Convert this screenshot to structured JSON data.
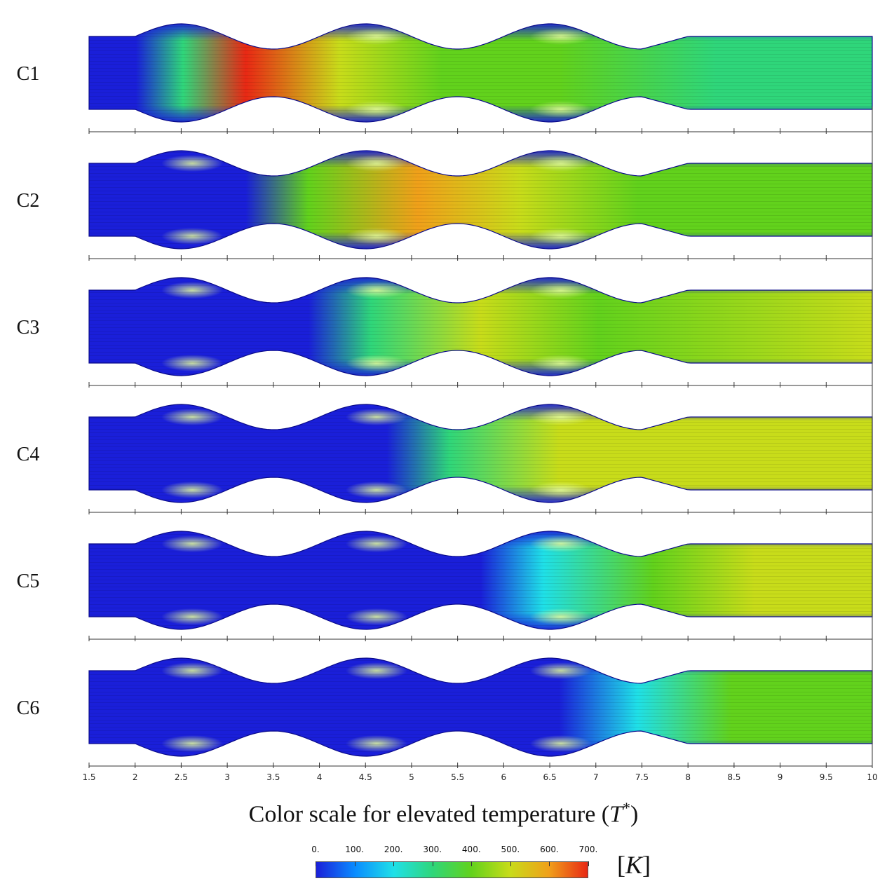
{
  "cases": [
    "C1",
    "C2",
    "C3",
    "C4",
    "C5",
    "C6"
  ],
  "axis": {
    "min": 1.5,
    "max": 10,
    "tick_labels": [
      "1.5",
      "2",
      "2.5",
      "3",
      "3.5",
      "4",
      "4.5",
      "5",
      "5.5",
      "6",
      "6.5",
      "7",
      "7.5",
      "8",
      "8.5",
      "9",
      "9.5",
      "10"
    ]
  },
  "caption": {
    "prefix": "Color scale for elevated temperature (",
    "symbol": "T",
    "superscript": "*",
    "suffix": ")"
  },
  "colorbar": {
    "labels": [
      "0.",
      "100.",
      "200.",
      "300.",
      "400.",
      "500.",
      "600.",
      "700."
    ],
    "range": [
      0,
      700
    ],
    "unit": "K",
    "colors": [
      "#1a1fd9",
      "#0a8cff",
      "#1fe0e8",
      "#2fd67a",
      "#62d21c",
      "#c8dc1a",
      "#f0a01a",
      "#e82814"
    ]
  }
}
